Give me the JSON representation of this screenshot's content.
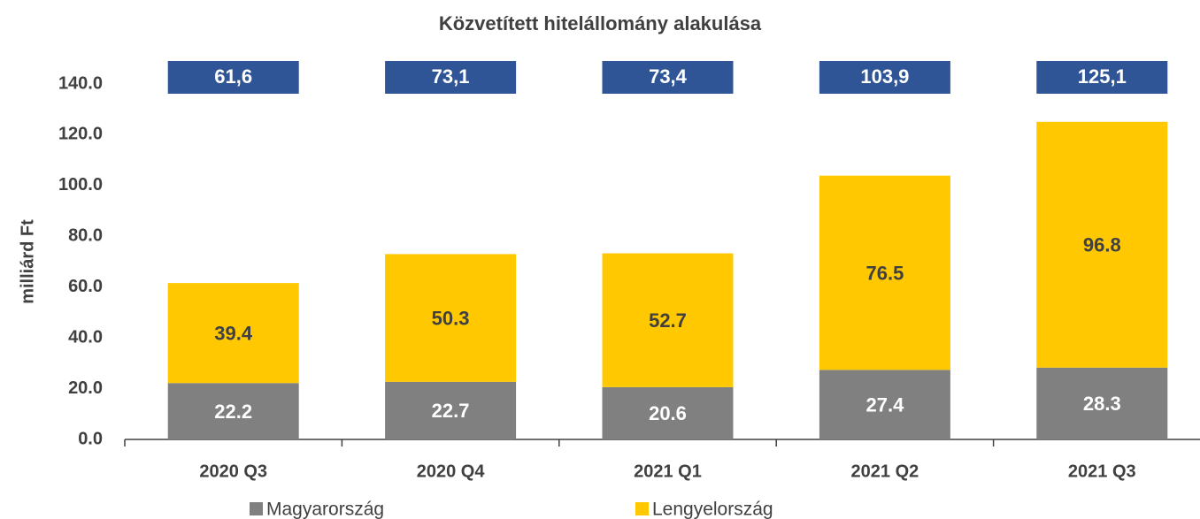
{
  "chart_data": {
    "type": "stacked_bar",
    "title": "Közvetített hitelállomány alakulása",
    "y_axis_label": "milliárd Ft",
    "categories": [
      "2020 Q3",
      "2020 Q4",
      "2021 Q1",
      "2021 Q2",
      "2021 Q3"
    ],
    "series": [
      {
        "name": "Magyarország",
        "color": "#808080",
        "values": [
          22.2,
          22.7,
          20.6,
          27.4,
          28.3
        ]
      },
      {
        "name": "Lengyelország",
        "color": "#FFC800",
        "values": [
          39.4,
          50.3,
          52.7,
          76.5,
          96.8
        ]
      }
    ],
    "total_labels": [
      "61,6",
      "73,1",
      "73,4",
      "103,9",
      "125,1"
    ],
    "ylim": [
      0,
      140
    ],
    "yticks": [
      {
        "value": 0,
        "label": "0.0"
      },
      {
        "value": 20,
        "label": "20.0"
      },
      {
        "value": 40,
        "label": "40.0"
      },
      {
        "value": 60,
        "label": "60.0"
      },
      {
        "value": 80,
        "label": "80.0"
      },
      {
        "value": 100,
        "label": "100.0"
      },
      {
        "value": 120,
        "label": "120.0"
      },
      {
        "value": 140,
        "label": "140.0"
      }
    ],
    "grid": false,
    "legend": "bottom"
  }
}
